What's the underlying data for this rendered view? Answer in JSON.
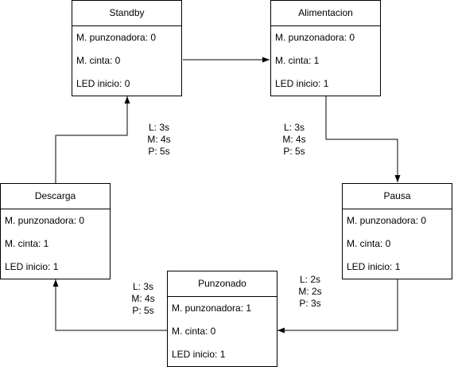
{
  "states": {
    "standby": {
      "title": "Standby",
      "rows": [
        "M. punzonadora: 0",
        "M. cinta: 0",
        "LED inicio: 0"
      ]
    },
    "alimentacion": {
      "title": "Alimentacion",
      "rows": [
        "M. punzonadora: 0",
        "M. cinta: 1",
        "LED inicio: 1"
      ]
    },
    "pausa": {
      "title": "Pausa",
      "rows": [
        "M. punzonadora: 0",
        "M. cinta: 0",
        "LED inicio: 1"
      ]
    },
    "punzonado": {
      "title": "Punzonado",
      "rows": [
        "M. punzonadora: 1",
        "M. cinta: 0",
        "LED inicio: 1"
      ]
    },
    "descarga": {
      "title": "Descarga",
      "rows": [
        "M. punzonadora: 0",
        "M. cinta: 1",
        "LED inicio: 1"
      ]
    }
  },
  "timings": {
    "standby_area": [
      "L: 3s",
      "M: 4s",
      "P: 5s"
    ],
    "alimentacion_pausa": [
      "L: 3s",
      "M: 4s",
      "P: 5s"
    ],
    "pausa_punzonado": [
      "L: 2s",
      "M: 2s",
      "P: 3s"
    ],
    "punzonado_descarga": [
      "L: 3s",
      "M: 4s",
      "P: 5s"
    ]
  },
  "colors": {
    "line": "#000000",
    "background": "#ffffff"
  }
}
